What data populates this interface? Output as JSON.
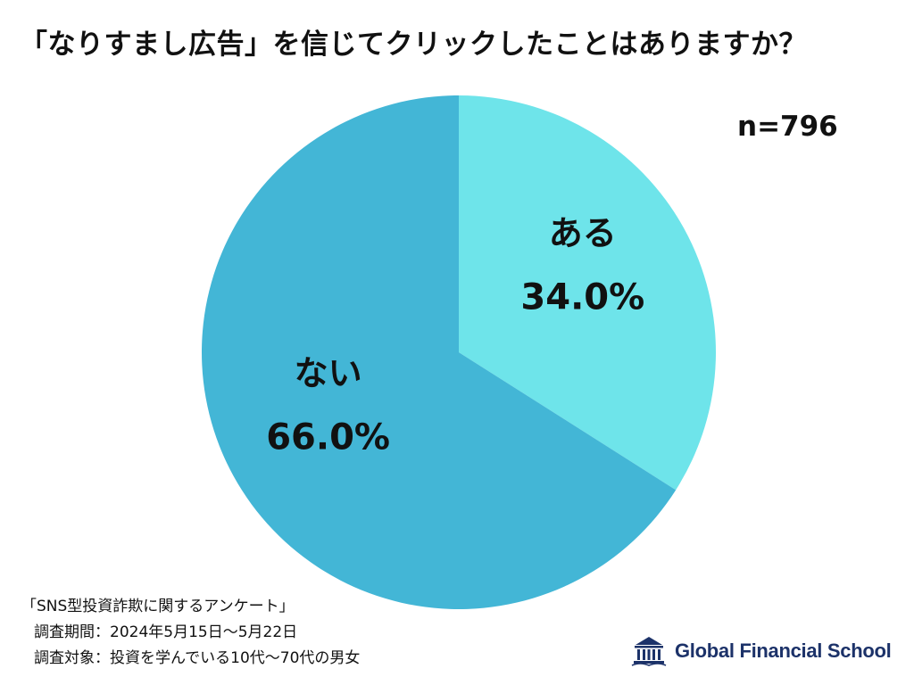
{
  "title": "「なりすまし広告」を信じてクリックしたことはありますか？",
  "sample_size": "n=796",
  "chart_data": {
    "type": "pie",
    "title": "「なりすまし広告」を信じてクリックしたことはありますか？",
    "slices": [
      {
        "label": "ある",
        "value": 34.0,
        "display": "34.0%",
        "color": "#6ee4ea"
      },
      {
        "label": "ない",
        "value": 66.0,
        "display": "66.0%",
        "color": "#43b6d6"
      }
    ],
    "start": "12 o'clock, clockwise",
    "legend": "none (labels inside slices)"
  },
  "survey": {
    "name": "「SNS型投資詐欺に関するアンケート」",
    "period": "調査期間：2024年5月15日〜5月22日",
    "target": "調査対象：投資を学んでいる10代〜70代の男女"
  },
  "brand": {
    "name": "Global Financial School",
    "logo_icon": "building-columns-icon",
    "color": "#1c3269"
  }
}
